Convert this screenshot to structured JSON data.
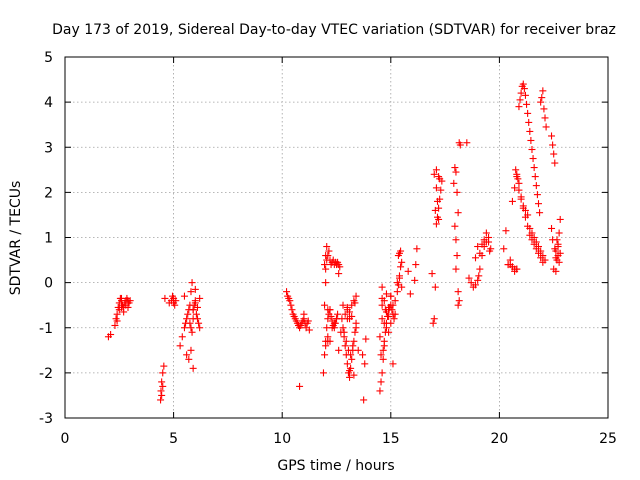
{
  "chart_data": {
    "type": "scatter",
    "title": "Day 173 of 2019, Sidereal Day-to-day VTEC variation (SDTVAR) for receiver braz",
    "xlabel": "GPS time / hours",
    "ylabel": "SDTVAR / TECUs",
    "xlim": [
      0,
      25
    ],
    "ylim": [
      -3,
      5
    ],
    "x_ticks": [
      0,
      5,
      10,
      15,
      20,
      25
    ],
    "y_ticks": [
      -3,
      -2,
      -1,
      0,
      1,
      2,
      3,
      4,
      5
    ],
    "x_tick_labels": [
      "0",
      "5",
      "10",
      "15",
      "20",
      "25"
    ],
    "y_tick_labels": [
      "-3",
      "-2",
      "-1",
      "0",
      "1",
      "2",
      "3",
      "4",
      "5"
    ],
    "grid": true,
    "marker": "+",
    "color": "#ff0000",
    "series": [
      {
        "name": "SDTVAR",
        "x": [
          2.0,
          2.1,
          2.3,
          2.35,
          2.4,
          2.45,
          2.5,
          2.55,
          2.6,
          2.65,
          2.7,
          2.75,
          2.8,
          2.85,
          2.9,
          2.95,
          3.0,
          2.5,
          2.6,
          2.7,
          2.8,
          2.9,
          2.4,
          2.6,
          4.4,
          4.42,
          4.45,
          4.5,
          4.55,
          4.5,
          4.45,
          4.6,
          4.8,
          4.9,
          5.0,
          5.05,
          4.95,
          5.1,
          5.0,
          5.3,
          5.4,
          5.5,
          5.55,
          5.6,
          5.65,
          5.7,
          5.75,
          5.8,
          5.85,
          5.9,
          5.7,
          5.6,
          5.8,
          5.5,
          5.9,
          5.75,
          5.8,
          5.85,
          5.9,
          5.95,
          6.0,
          6.05,
          6.1,
          6.15,
          6.2,
          6.0,
          6.1,
          6.2,
          5.9,
          6.0,
          10.2,
          10.25,
          10.3,
          10.35,
          10.4,
          10.45,
          10.5,
          10.55,
          10.6,
          10.65,
          10.7,
          10.75,
          10.8,
          10.85,
          10.9,
          10.95,
          11.0,
          11.05,
          11.1,
          11.15,
          11.2,
          11.25,
          11.0,
          10.8,
          11.9,
          11.95,
          12.0,
          12.05,
          12.1,
          12.15,
          12.2,
          12.25,
          12.3,
          12.35,
          12.4,
          12.45,
          12.5,
          12.55,
          12.6,
          11.95,
          12.0,
          12.05,
          12.1,
          11.95,
          12.0,
          12.0,
          12.05,
          12.1,
          12.15,
          12.2,
          12.25,
          12.3,
          12.35,
          12.4,
          12.45,
          12.5,
          12.55,
          12.6,
          12.65,
          12.7,
          12.1,
          12.2,
          12.3,
          12.4,
          12.5,
          12.6,
          12.0,
          12.1,
          12.2,
          12.75,
          12.8,
          12.85,
          12.9,
          12.95,
          13.0,
          13.05,
          13.1,
          13.15,
          13.2,
          13.25,
          13.3,
          13.35,
          13.4,
          12.8,
          12.9,
          13.0,
          13.1,
          13.2,
          13.3,
          13.4,
          12.85,
          12.95,
          13.05,
          13.15,
          13.25,
          13.35,
          13.0,
          13.1,
          13.2,
          13.3,
          13.1,
          13.0,
          13.4,
          13.5,
          13.7,
          13.8,
          13.85,
          13.75,
          14.5,
          14.55,
          14.6,
          14.65,
          14.7,
          14.75,
          14.8,
          14.85,
          14.9,
          14.95,
          15.0,
          15.05,
          15.1,
          15.15,
          15.2,
          14.6,
          14.7,
          14.8,
          14.9,
          15.0,
          15.1,
          14.55,
          14.65,
          14.75,
          14.6,
          14.7,
          14.8,
          14.6,
          14.7,
          14.5,
          14.6,
          15.0,
          15.1,
          15.2,
          14.9,
          14.8,
          14.9,
          15.0,
          15.3,
          15.35,
          15.4,
          15.45,
          15.5,
          15.35,
          15.45,
          15.4,
          15.5,
          15.3,
          15.4,
          15.8,
          15.9,
          16.1,
          16.2,
          16.15,
          16.9,
          16.95,
          17.0,
          17.05,
          17.1,
          17.15,
          17.2,
          17.25,
          17.3,
          17.35,
          17.0,
          17.1,
          17.2,
          17.1,
          17.2,
          17.05,
          17.15,
          17.25,
          17.9,
          17.95,
          18.0,
          18.05,
          18.1,
          17.95,
          18.0,
          18.05,
          18.0,
          18.1,
          18.15,
          18.1,
          18.15,
          18.2,
          18.5,
          18.6,
          18.7,
          18.8,
          18.9,
          19.0,
          19.05,
          19.1,
          19.2,
          19.3,
          19.4,
          19.5,
          19.55,
          19.6,
          19.0,
          19.2,
          19.4,
          19.5,
          18.9,
          19.1,
          19.3,
          20.2,
          20.3,
          20.4,
          20.5,
          20.6,
          20.7,
          20.8,
          20.9,
          21.0,
          21.1,
          21.2,
          21.3,
          21.4,
          21.5,
          21.6,
          21.7,
          21.8,
          21.9,
          22.0,
          22.1,
          20.5,
          20.6,
          20.7,
          20.8,
          20.9,
          21.0,
          21.1,
          21.2,
          21.3,
          21.4,
          21.5,
          21.6,
          21.7,
          21.8,
          21.9,
          22.0,
          20.4,
          20.6,
          20.8,
          20.7,
          20.75,
          20.8,
          20.85,
          20.9,
          20.95,
          21.0,
          21.05,
          21.1,
          21.15,
          21.2,
          21.25,
          21.3,
          21.35,
          21.4,
          21.45,
          21.5,
          21.55,
          21.6,
          21.65,
          21.7,
          21.75,
          21.8,
          21.85,
          21.9,
          21.95,
          22.0,
          22.05,
          22.1,
          22.15,
          22.4,
          22.45,
          22.5,
          22.55,
          22.6,
          22.65,
          22.7,
          22.75,
          22.8,
          22.5,
          22.6,
          22.7,
          22.8,
          22.55,
          22.65,
          22.75,
          22.4,
          22.45,
          22.6,
          22.7
        ],
        "y": [
          -1.2,
          -1.15,
          -0.95,
          -0.8,
          -0.7,
          -0.55,
          -0.45,
          -0.35,
          -0.4,
          -0.5,
          -0.55,
          -0.45,
          -0.4,
          -0.35,
          -0.4,
          -0.45,
          -0.4,
          -0.6,
          -0.55,
          -0.65,
          -0.5,
          -0.55,
          -0.85,
          -0.35,
          -2.6,
          -2.4,
          -2.2,
          -2.0,
          -1.85,
          -2.3,
          -2.5,
          -0.35,
          -0.45,
          -0.4,
          -0.35,
          -0.5,
          -0.3,
          -0.4,
          -0.45,
          -1.4,
          -1.2,
          -1.0,
          -0.9,
          -0.8,
          -0.7,
          -0.6,
          -0.5,
          -0.2,
          0.0,
          -1.9,
          -1.7,
          -1.6,
          -1.5,
          -0.3,
          -0.8,
          -0.9,
          -1.0,
          -1.1,
          -0.6,
          -0.5,
          -0.4,
          -0.7,
          -0.8,
          -0.9,
          -0.35,
          -0.45,
          -0.55,
          -1.0,
          -0.6,
          -0.15,
          -0.2,
          -0.3,
          -0.35,
          -0.4,
          -0.5,
          -0.6,
          -0.7,
          -0.75,
          -0.8,
          -0.85,
          -0.9,
          -0.95,
          -1.0,
          -0.95,
          -0.9,
          -0.85,
          -0.8,
          -0.9,
          -1.0,
          -0.9,
          -0.85,
          -1.05,
          -0.7,
          -2.3,
          -2.0,
          -1.6,
          -1.3,
          -1.0,
          -0.8,
          -0.7,
          -0.6,
          -0.75,
          -0.85,
          -0.95,
          -1.0,
          -0.9,
          -0.8,
          -0.7,
          0.2,
          0.4,
          0.6,
          0.8,
          -0.6,
          -0.5,
          0.0,
          0.3,
          0.5,
          0.6,
          0.7,
          0.5,
          0.4,
          0.45,
          0.5,
          0.4,
          0.45,
          0.4,
          0.45,
          0.4,
          0.35,
          -1.1,
          -1.2,
          -1.3,
          -1.0,
          -0.9,
          -0.8,
          -1.5,
          -1.4,
          -1.3,
          -0.6,
          -0.8,
          -1.0,
          -1.2,
          -1.4,
          -1.6,
          -1.8,
          -2.0,
          -2.1,
          -1.9,
          -1.7,
          -1.5,
          -1.3,
          -1.1,
          -0.3,
          -0.5,
          -0.7,
          -0.6,
          -0.8,
          -0.5,
          -0.4,
          -0.9,
          -1.1,
          -1.3,
          -1.5,
          -1.6,
          -1.4,
          -0.45,
          -0.55,
          -0.65,
          -0.75,
          -2.05,
          -1.95,
          -0.8,
          -1.0,
          -1.5,
          -1.6,
          -1.8,
          -1.25,
          -2.6,
          -2.4,
          -2.2,
          -2.0,
          -1.7,
          -1.4,
          -1.1,
          -0.9,
          -0.75,
          -0.6,
          -0.55,
          -0.5,
          -0.6,
          -0.7,
          -0.8,
          -0.7,
          -0.8,
          -0.9,
          -1.0,
          -1.1,
          -0.9,
          -1.8,
          -1.6,
          -1.5,
          -0.6,
          -0.5,
          -0.4,
          -0.25,
          -0.35,
          -1.3,
          -1.2,
          -0.1,
          -0.3,
          -0.5,
          -0.4,
          -0.55,
          -0.65,
          -0.75,
          -0.3,
          -0.2,
          -0.05,
          0.15,
          0.35,
          0.45,
          0.6,
          0.7,
          0.65,
          -0.1,
          0.0,
          0.1,
          0.25,
          -0.25,
          0.05,
          0.75,
          0.4,
          0.2,
          -0.9,
          -0.8,
          -0.1,
          1.3,
          1.45,
          1.65,
          1.85,
          2.05,
          2.25,
          2.4,
          2.5,
          2.35,
          2.1,
          1.4,
          1.6,
          1.8,
          2.3,
          2.2,
          2.55,
          2.45,
          2.0,
          1.55,
          1.25,
          0.95,
          0.6,
          0.3,
          -0.2,
          -0.4,
          -0.5,
          3.1,
          3.05,
          3.1,
          0.1,
          0.0,
          -0.1,
          -0.05,
          0.05,
          0.15,
          0.3,
          0.6,
          0.8,
          1.1,
          0.9,
          0.7,
          0.75,
          0.8,
          0.85,
          0.9,
          1.0,
          0.55,
          0.65,
          0.95,
          0.75,
          1.15,
          0.4,
          0.5,
          1.8,
          2.1,
          2.35,
          2.2,
          1.9,
          1.7,
          1.6,
          1.5,
          1.2,
          1.1,
          1.0,
          0.9,
          0.8,
          0.7,
          0.6,
          0.5,
          0.4,
          0.35,
          0.3,
          0.3,
          2.05,
          1.85,
          1.65,
          1.45,
          1.25,
          1.05,
          0.95,
          0.85,
          0.75,
          0.65,
          0.55,
          0.45,
          0.4,
          0.35,
          0.3,
          0.25,
          2.5,
          2.4,
          2.3,
          3.9,
          4.05,
          4.2,
          4.35,
          4.4,
          4.3,
          4.15,
          3.95,
          3.75,
          3.55,
          3.35,
          3.15,
          2.95,
          2.75,
          2.55,
          2.35,
          2.15,
          1.95,
          1.75,
          1.55,
          4.0,
          4.1,
          4.25,
          3.85,
          3.65,
          3.45,
          3.25,
          3.05,
          2.85,
          2.65,
          0.25,
          0.5,
          0.8,
          1.1,
          1.4,
          0.3,
          0.55,
          0.85,
          0.65,
          0.75,
          0.95,
          0.45,
          1.2,
          0.95,
          0.7,
          0.6
        ]
      }
    ]
  }
}
